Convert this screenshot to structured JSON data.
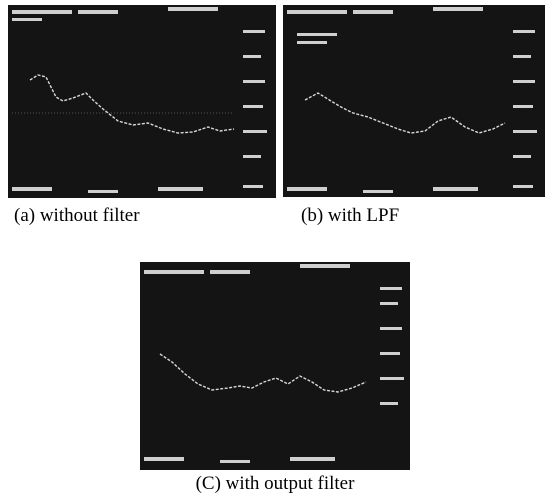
{
  "figure": {
    "panels": [
      {
        "caption": "(a) without filter"
      },
      {
        "caption": "(b) with LPF"
      },
      {
        "caption": "(C) with output filter"
      }
    ]
  }
}
